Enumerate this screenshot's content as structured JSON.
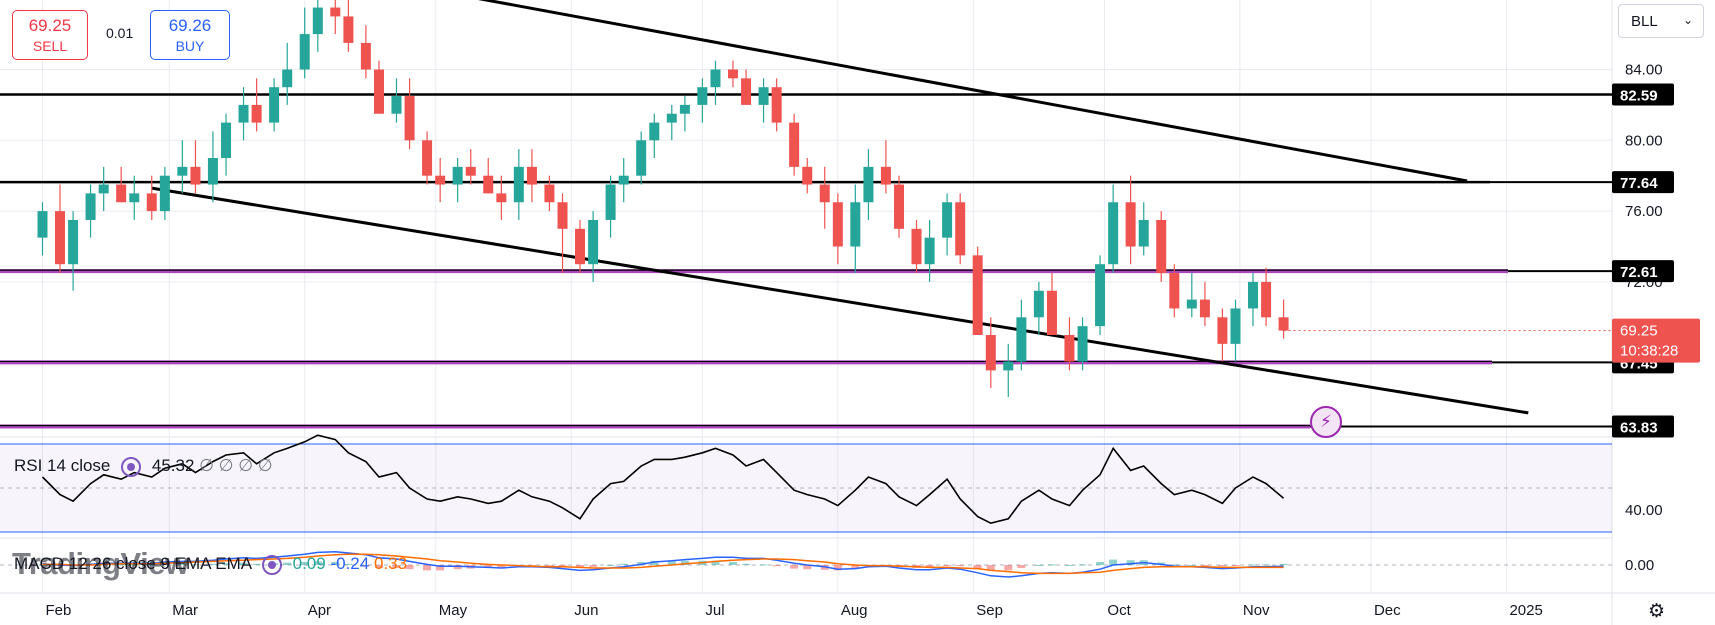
{
  "toolbar": {
    "sell_price": "69.25",
    "sell_label": "SELL",
    "spread": "0.01",
    "buy_price": "69.26",
    "buy_label": "BUY",
    "symbol": "BLL"
  },
  "watermark": "TradingView",
  "colors": {
    "up": "#26a69a",
    "down": "#ef5350",
    "purple": "#9c27b0",
    "black": "#000000",
    "rsi_band": "#2962ff"
  },
  "chart_data": [
    {
      "type": "candlestick",
      "x": [
        "2024-02-01",
        "2024-02-05",
        "2024-02-08",
        "2024-02-12",
        "2024-02-15",
        "2024-02-19",
        "2024-02-22",
        "2024-02-26",
        "2024-02-29",
        "2024-03-04",
        "2024-03-07",
        "2024-03-11",
        "2024-03-14",
        "2024-03-18",
        "2024-03-21",
        "2024-03-25",
        "2024-03-28",
        "2024-04-01",
        "2024-04-04",
        "2024-04-08",
        "2024-04-11",
        "2024-04-15",
        "2024-04-18",
        "2024-04-22",
        "2024-04-25",
        "2024-04-29",
        "2024-05-02",
        "2024-05-06",
        "2024-05-09",
        "2024-05-13",
        "2024-05-16",
        "2024-05-20",
        "2024-05-23",
        "2024-05-27",
        "2024-05-30",
        "2024-06-03",
        "2024-06-06",
        "2024-06-10",
        "2024-06-13",
        "2024-06-17",
        "2024-06-20",
        "2024-06-24",
        "2024-06-27",
        "2024-07-01",
        "2024-07-04",
        "2024-07-08",
        "2024-07-11",
        "2024-07-15",
        "2024-07-18",
        "2024-07-22",
        "2024-07-25",
        "2024-07-29",
        "2024-08-01",
        "2024-08-05",
        "2024-08-08",
        "2024-08-12",
        "2024-08-15",
        "2024-08-19",
        "2024-08-22",
        "2024-08-26",
        "2024-08-29",
        "2024-09-02",
        "2024-09-05",
        "2024-09-09",
        "2024-09-12",
        "2024-09-16",
        "2024-09-19",
        "2024-09-23",
        "2024-09-26",
        "2024-09-30",
        "2024-10-03",
        "2024-10-07",
        "2024-10-10",
        "2024-10-14",
        "2024-10-17",
        "2024-10-21",
        "2024-10-24",
        "2024-10-28",
        "2024-10-31",
        "2024-11-04",
        "2024-11-07",
        "2024-11-11"
      ],
      "open": [
        74.5,
        76.0,
        73.0,
        75.5,
        77.0,
        77.5,
        76.5,
        77.0,
        76.0,
        78.0,
        78.5,
        77.5,
        79.0,
        81.0,
        82.0,
        81.0,
        83.0,
        84.0,
        86.0,
        87.5,
        87.0,
        85.5,
        84.0,
        81.5,
        82.5,
        80.0,
        78.0,
        77.5,
        78.5,
        78.0,
        77.0,
        76.5,
        78.5,
        77.5,
        76.5,
        75.0,
        73.0,
        75.5,
        77.5,
        78.0,
        80.0,
        81.0,
        81.5,
        82.0,
        83.0,
        84.0,
        83.5,
        82.0,
        83.0,
        81.0,
        78.5,
        77.5,
        76.5,
        74.0,
        76.5,
        78.5,
        77.5,
        75.0,
        73.0,
        74.5,
        76.5,
        73.5,
        69.0,
        67.0,
        67.5,
        70.0,
        71.5,
        69.0,
        67.5,
        69.5,
        73.0,
        76.5,
        74.0,
        75.5,
        72.5,
        70.5,
        71.0,
        70.0,
        68.5,
        70.5,
        72.0,
        70.0
      ],
      "high": [
        76.5,
        77.5,
        76.0,
        77.5,
        78.5,
        78.5,
        78.0,
        78.0,
        78.5,
        80.0,
        80.0,
        80.5,
        81.5,
        83.0,
        83.5,
        83.5,
        85.5,
        87.5,
        88.5,
        88.0,
        88.0,
        86.5,
        84.5,
        83.5,
        83.5,
        80.5,
        79.0,
        79.0,
        79.5,
        79.0,
        78.0,
        79.5,
        79.5,
        78.0,
        77.0,
        75.5,
        76.0,
        78.0,
        79.0,
        80.5,
        81.5,
        82.0,
        82.5,
        83.5,
        84.5,
        84.5,
        84.0,
        83.5,
        83.5,
        81.5,
        79.0,
        78.5,
        77.0,
        77.5,
        79.5,
        80.0,
        78.0,
        75.5,
        75.5,
        77.0,
        77.0,
        74.0,
        70.0,
        68.5,
        71.0,
        72.0,
        72.5,
        70.0,
        70.0,
        73.5,
        77.5,
        78.0,
        76.5,
        76.0,
        73.0,
        72.5,
        72.0,
        70.5,
        71.0,
        72.5,
        72.8,
        71.0
      ],
      "low": [
        73.5,
        72.5,
        71.5,
        74.5,
        76.0,
        76.5,
        75.5,
        75.5,
        75.5,
        77.0,
        77.0,
        76.5,
        78.0,
        80.0,
        80.5,
        80.5,
        82.0,
        83.5,
        85.0,
        86.0,
        85.0,
        83.5,
        81.5,
        81.0,
        79.5,
        77.5,
        76.5,
        76.5,
        77.5,
        77.0,
        75.5,
        75.5,
        76.5,
        76.0,
        72.5,
        72.5,
        72.0,
        74.5,
        76.5,
        77.5,
        79.0,
        80.0,
        80.5,
        81.0,
        82.0,
        83.0,
        82.0,
        81.0,
        80.5,
        78.0,
        77.0,
        75.0,
        73.0,
        72.5,
        75.5,
        77.0,
        74.5,
        72.5,
        72.0,
        73.5,
        73.0,
        69.0,
        66.0,
        65.5,
        67.0,
        69.0,
        69.0,
        67.0,
        67.0,
        69.0,
        72.5,
        73.0,
        73.5,
        72.0,
        70.0,
        70.0,
        69.5,
        67.5,
        67.5,
        69.5,
        69.5,
        68.8
      ],
      "close": [
        76.0,
        73.0,
        75.5,
        77.0,
        77.5,
        76.5,
        77.0,
        76.0,
        78.0,
        78.5,
        77.5,
        79.0,
        81.0,
        82.0,
        81.0,
        83.0,
        84.0,
        86.0,
        87.5,
        87.0,
        85.5,
        84.0,
        81.5,
        82.5,
        80.0,
        78.0,
        77.5,
        78.5,
        78.0,
        77.0,
        76.5,
        78.5,
        77.5,
        76.5,
        75.0,
        73.0,
        75.5,
        77.5,
        78.0,
        80.0,
        81.0,
        81.5,
        82.0,
        83.0,
        84.0,
        83.5,
        82.0,
        83.0,
        81.0,
        78.5,
        77.5,
        76.5,
        74.0,
        76.5,
        78.5,
        77.5,
        75.0,
        73.0,
        74.5,
        76.5,
        73.5,
        69.0,
        67.0,
        67.5,
        70.0,
        71.5,
        69.0,
        67.5,
        69.5,
        73.0,
        76.5,
        74.0,
        75.5,
        72.5,
        70.5,
        71.0,
        70.0,
        68.5,
        70.5,
        72.0,
        70.0,
        69.25
      ],
      "y_ticks": [
        "84.00",
        "80.00",
        "76.00",
        "72.00"
      ],
      "x_ticks": [
        "Feb",
        "Mar",
        "Apr",
        "May",
        "Jun",
        "Jul",
        "Aug",
        "Sep",
        "Oct",
        "Nov",
        "Dec",
        "2025"
      ],
      "price_levels": [
        {
          "value": 82.59,
          "label": "82.59",
          "color": "#000000"
        },
        {
          "value": 77.64,
          "label": "77.64",
          "color": "#000000"
        },
        {
          "value": 72.61,
          "label": "72.61",
          "color": "#9c27b0"
        },
        {
          "value": 67.45,
          "label": "67.45",
          "color": "#9c27b0"
        },
        {
          "value": 63.83,
          "label": "63.83",
          "color": "#9c27b0"
        }
      ],
      "trendlines": [
        {
          "from": [
            "2024-04-08",
            89.5
          ],
          "to": [
            "2024-12-23",
            77.7
          ]
        },
        {
          "from": [
            "2024-02-26",
            77.3
          ],
          "to": [
            "2025-01-06",
            64.6
          ]
        }
      ],
      "last_price": {
        "value": 69.25,
        "label": "69.25",
        "countdown": "10:38:28",
        "color": "#ef5350"
      }
    },
    {
      "type": "line",
      "name": "RSI 14 close",
      "legend_value": "45.32",
      "legend_extra": "∅ ∅ ∅ ∅",
      "values": [
        55,
        47,
        44,
        52,
        56,
        54,
        57,
        55,
        59,
        61,
        57,
        62,
        65,
        66,
        61,
        66,
        68,
        71,
        74,
        72,
        66,
        62,
        55,
        57,
        50,
        45,
        44,
        46,
        45,
        43,
        44,
        49,
        46,
        44,
        41,
        36,
        45,
        52,
        53,
        60,
        63,
        63,
        64,
        66,
        68,
        65,
        60,
        63,
        57,
        49,
        47,
        45,
        42,
        49,
        55,
        52,
        46,
        42,
        47,
        54,
        45,
        37,
        34,
        36,
        44,
        49,
        45,
        42,
        49,
        56,
        68,
        58,
        60,
        52,
        47,
        49,
        47,
        43,
        50,
        55,
        52,
        45.32
      ],
      "band_upper": 70,
      "band_lower": 30,
      "tick": "40.00"
    },
    {
      "type": "bar+line",
      "name": "MACD 12 26 close 9 EMA EMA",
      "legend_values": [
        "0.09",
        "-0.24",
        "0.33"
      ],
      "macd": [
        0.2,
        0.0,
        -0.1,
        0.1,
        0.3,
        0.3,
        0.3,
        0.3,
        0.5,
        0.6,
        0.6,
        0.8,
        1.0,
        1.2,
        1.1,
        1.3,
        1.5,
        1.8,
        2.1,
        2.2,
        2.0,
        1.7,
        1.2,
        1.0,
        0.6,
        0.1,
        -0.2,
        -0.2,
        -0.3,
        -0.4,
        -0.5,
        -0.3,
        -0.3,
        -0.4,
        -0.6,
        -0.9,
        -0.8,
        -0.5,
        -0.3,
        0.1,
        0.5,
        0.7,
        0.9,
        1.1,
        1.3,
        1.3,
        1.1,
        1.1,
        0.8,
        0.3,
        0.0,
        -0.3,
        -0.7,
        -0.6,
        -0.3,
        -0.2,
        -0.5,
        -0.8,
        -0.8,
        -0.5,
        -0.7,
        -1.3,
        -1.8,
        -2.0,
        -1.8,
        -1.4,
        -1.3,
        -1.4,
        -1.2,
        -0.7,
        0.0,
        0.2,
        0.4,
        0.1,
        -0.2,
        -0.3,
        -0.4,
        -0.6,
        -0.5,
        -0.3,
        -0.3,
        -0.2
      ],
      "signal": [
        0.1,
        0.1,
        0.0,
        0.0,
        0.1,
        0.2,
        0.2,
        0.2,
        0.3,
        0.4,
        0.5,
        0.6,
        0.7,
        0.8,
        0.9,
        1.0,
        1.1,
        1.3,
        1.5,
        1.7,
        1.8,
        1.8,
        1.7,
        1.5,
        1.3,
        1.0,
        0.7,
        0.5,
        0.3,
        0.1,
        0.0,
        -0.1,
        -0.2,
        -0.3,
        -0.3,
        -0.4,
        -0.5,
        -0.5,
        -0.5,
        -0.4,
        -0.2,
        0.0,
        0.2,
        0.4,
        0.6,
        0.8,
        0.9,
        1.0,
        1.0,
        0.9,
        0.7,
        0.5,
        0.2,
        0.0,
        -0.1,
        -0.1,
        -0.2,
        -0.3,
        -0.4,
        -0.4,
        -0.5,
        -0.6,
        -0.9,
        -1.1,
        -1.3,
        -1.4,
        -1.4,
        -1.4,
        -1.3,
        -1.2,
        -0.9,
        -0.6,
        -0.4,
        -0.3,
        -0.3,
        -0.3,
        -0.3,
        -0.4,
        -0.4,
        -0.4,
        -0.4,
        -0.4
      ],
      "tick": "0.00"
    }
  ]
}
